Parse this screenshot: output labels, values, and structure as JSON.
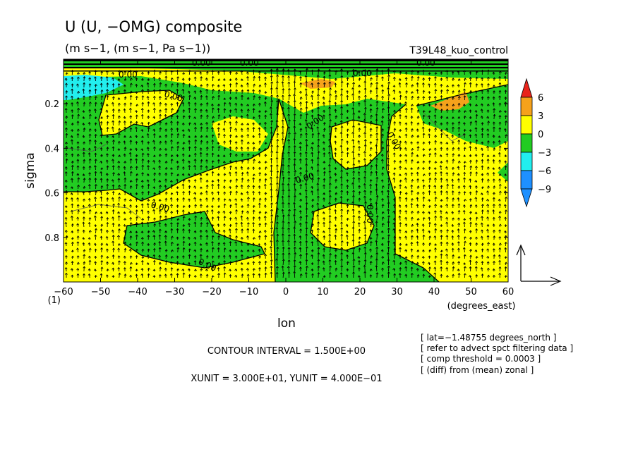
{
  "chart_data": {
    "type": "heatmap",
    "title": "U (U, −OMG) composite",
    "subtitle": "(m s−1, (m s−1, Pa s−1))",
    "run_label": "T39L48_kuo_control",
    "xlabel": "lon",
    "x_units": "(degrees_east)",
    "ylabel": "sigma",
    "y_corner_label": "(1)",
    "xlim": [
      -60,
      60
    ],
    "ylim": [
      0.0,
      1.0
    ],
    "y_reversed": true,
    "x_ticks": [
      "−60",
      "−50",
      "−40",
      "−30",
      "−20",
      "−10",
      "0",
      "10",
      "20",
      "30",
      "40",
      "50",
      "60"
    ],
    "x_tick_values": [
      -60,
      -50,
      -40,
      -30,
      -20,
      -10,
      0,
      10,
      20,
      30,
      40,
      50,
      60
    ],
    "y_ticks": [
      "0.2",
      "0.4",
      "0.6",
      "0.8"
    ],
    "y_tick_values": [
      0.2,
      0.4,
      0.6,
      0.8
    ],
    "contour_label": "0.00",
    "colorbar": {
      "levels": [
        "6",
        "3",
        "0",
        "−3",
        "−6",
        "−9"
      ],
      "colors": [
        "#e8231a",
        "#f5a21b",
        "#ffff00",
        "#22cc22",
        "#22eeee",
        "#1e90ff"
      ],
      "segment_colors": [
        "#f5a21b",
        "#ffff00",
        "#22cc22",
        "#22eeee",
        "#1e90ff"
      ]
    },
    "field_colors": {
      "positive": "#ffff00",
      "negative": "#22cc22",
      "strong_positive": "#f5a21b",
      "strong_negative": "#22eeee"
    },
    "annotations": {
      "contour_interval": "CONTOUR INTERVAL = 1.500E+00",
      "units_line": "XUNIT = 3.000E+01, YUNIT = 4.000E−01",
      "info_lines": [
        "[ lat=−1.48755 degrees_north ]",
        "[ refer to advect spct filtering data ]",
        "[ comp threshold = 0.0003 ]",
        "[ (diff) from (mean) zonal ]"
      ]
    }
  }
}
